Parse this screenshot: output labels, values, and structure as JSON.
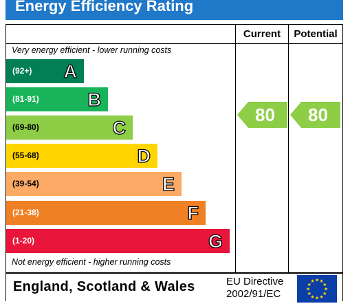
{
  "title": "Energy Efficiency Rating",
  "columns": {
    "current": "Current",
    "potential": "Potential"
  },
  "notes": {
    "top": "Very energy efficient - lower running costs",
    "bottom": "Not energy efficient - higher running costs"
  },
  "chart_data": {
    "type": "bar",
    "title": "Energy Efficiency Rating",
    "categories": [
      "A",
      "B",
      "C",
      "D",
      "E",
      "F",
      "G"
    ],
    "ranges": [
      "(92+)",
      "(81-91)",
      "(69-80)",
      "(55-68)",
      "(39-54)",
      "(21-38)",
      "(1-20)"
    ],
    "colors": [
      "#008054",
      "#19b459",
      "#8dce46",
      "#ffd500",
      "#fcaa65",
      "#ef8023",
      "#e9153b"
    ],
    "current": 80,
    "potential": 80,
    "current_band": "C",
    "potential_band": "C"
  },
  "indicator_color": "#8dce46",
  "footer": {
    "region": "England, Scotland & Wales",
    "directive_line1": "EU Directive",
    "directive_line2": "2002/91/EC"
  },
  "icons": {
    "flag": "eu-flag-icon"
  }
}
